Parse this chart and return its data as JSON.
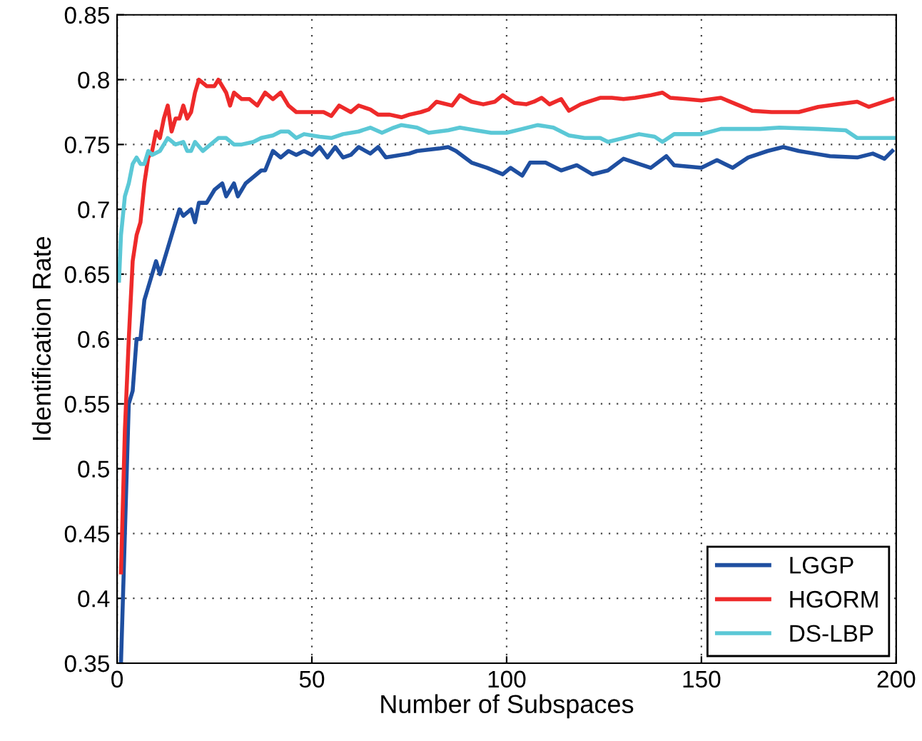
{
  "chart_data": {
    "type": "line",
    "xlabel": "Number of Subspaces",
    "ylabel": "Identification Rate",
    "xlim": [
      0,
      200
    ],
    "ylim": [
      0.35,
      0.85
    ],
    "xticks": [
      0,
      50,
      100,
      150,
      200
    ],
    "yticks": [
      0.35,
      0.4,
      0.45,
      0.5,
      0.55,
      0.6,
      0.65,
      0.7,
      0.75,
      0.8,
      0.85
    ],
    "grid": true,
    "legend": "bottom right",
    "marker": "none",
    "line_style": "solid",
    "series": [
      {
        "name": "LGGP",
        "color": "#1f4fa0",
        "x": [
          1,
          2,
          3,
          4,
          5,
          6,
          7,
          8,
          9,
          10,
          11,
          13,
          15,
          16,
          17,
          19,
          20,
          21,
          23,
          25,
          27,
          28,
          30,
          31,
          33,
          35,
          37,
          38,
          40,
          42,
          44,
          46,
          48,
          50,
          52,
          54,
          56,
          58,
          60,
          62,
          65,
          67,
          69,
          75,
          77,
          83,
          85,
          87,
          91,
          95,
          99,
          101,
          104,
          106,
          110,
          114,
          118,
          122,
          126,
          130,
          133,
          137,
          141,
          143,
          150,
          154,
          158,
          162,
          167,
          171,
          175,
          179,
          183,
          190,
          194,
          197,
          199
        ],
        "values": [
          0.35,
          0.45,
          0.55,
          0.56,
          0.6,
          0.6,
          0.63,
          0.64,
          0.65,
          0.66,
          0.65,
          0.67,
          0.69,
          0.7,
          0.695,
          0.7,
          0.69,
          0.705,
          0.705,
          0.715,
          0.72,
          0.71,
          0.72,
          0.71,
          0.72,
          0.725,
          0.73,
          0.73,
          0.745,
          0.74,
          0.745,
          0.742,
          0.745,
          0.742,
          0.748,
          0.74,
          0.748,
          0.74,
          0.742,
          0.748,
          0.743,
          0.748,
          0.74,
          0.743,
          0.745,
          0.747,
          0.748,
          0.745,
          0.736,
          0.732,
          0.727,
          0.732,
          0.726,
          0.736,
          0.736,
          0.73,
          0.734,
          0.727,
          0.73,
          0.739,
          0.736,
          0.732,
          0.741,
          0.734,
          0.732,
          0.738,
          0.732,
          0.74,
          0.745,
          0.748,
          0.745,
          0.743,
          0.741,
          0.74,
          0.743,
          0.739,
          0.745
        ]
      },
      {
        "name": "HGORM",
        "color": "#ee2a2a",
        "x": [
          1,
          2,
          3,
          4,
          5,
          6,
          7,
          8,
          9,
          10,
          11,
          12,
          13,
          14,
          15,
          16,
          17,
          18,
          19,
          20,
          21,
          23,
          25,
          26,
          28,
          29,
          30,
          32,
          34,
          36,
          38,
          40,
          42,
          44,
          46,
          48,
          50,
          53,
          55,
          57,
          60,
          62,
          65,
          67,
          70,
          73,
          75,
          78,
          80,
          82,
          86,
          88,
          91,
          94,
          97,
          99,
          102,
          105,
          107,
          109,
          111,
          114,
          116,
          119,
          121,
          124,
          127,
          130,
          133,
          137,
          140,
          142,
          146,
          150,
          155,
          159,
          163,
          168,
          175,
          180,
          185,
          190,
          193,
          197,
          199
        ],
        "values": [
          0.42,
          0.53,
          0.6,
          0.66,
          0.68,
          0.69,
          0.72,
          0.74,
          0.745,
          0.76,
          0.755,
          0.77,
          0.78,
          0.76,
          0.77,
          0.77,
          0.78,
          0.77,
          0.775,
          0.79,
          0.8,
          0.795,
          0.795,
          0.8,
          0.79,
          0.78,
          0.79,
          0.785,
          0.785,
          0.78,
          0.79,
          0.785,
          0.79,
          0.78,
          0.775,
          0.775,
          0.775,
          0.775,
          0.772,
          0.78,
          0.775,
          0.78,
          0.777,
          0.773,
          0.773,
          0.771,
          0.773,
          0.775,
          0.777,
          0.783,
          0.78,
          0.788,
          0.783,
          0.781,
          0.783,
          0.788,
          0.782,
          0.781,
          0.783,
          0.786,
          0.781,
          0.785,
          0.776,
          0.781,
          0.783,
          0.786,
          0.786,
          0.785,
          0.786,
          0.788,
          0.79,
          0.786,
          0.785,
          0.784,
          0.786,
          0.781,
          0.776,
          0.775,
          0.775,
          0.779,
          0.781,
          0.783,
          0.779,
          0.783,
          0.785
        ]
      },
      {
        "name": "DS-LBP",
        "color": "#5bc8d6",
        "x": [
          0.5,
          1,
          2,
          3,
          4,
          5,
          6,
          7,
          8,
          9,
          11,
          13,
          15,
          17,
          18,
          19,
          20,
          22,
          24,
          26,
          28,
          30,
          32,
          35,
          37,
          40,
          42,
          44,
          46,
          48,
          52,
          55,
          58,
          62,
          65,
          68,
          71,
          73,
          77,
          80,
          85,
          88,
          92,
          96,
          100,
          104,
          108,
          112,
          116,
          120,
          124,
          126,
          130,
          134,
          138,
          140,
          143,
          150,
          155,
          165,
          170,
          180,
          187,
          190,
          195,
          200
        ],
        "values": [
          0.645,
          0.68,
          0.71,
          0.72,
          0.735,
          0.74,
          0.735,
          0.735,
          0.745,
          0.742,
          0.745,
          0.755,
          0.75,
          0.752,
          0.745,
          0.745,
          0.752,
          0.745,
          0.75,
          0.755,
          0.755,
          0.75,
          0.75,
          0.752,
          0.755,
          0.757,
          0.76,
          0.76,
          0.755,
          0.758,
          0.756,
          0.755,
          0.758,
          0.76,
          0.763,
          0.759,
          0.763,
          0.765,
          0.763,
          0.759,
          0.761,
          0.763,
          0.761,
          0.759,
          0.759,
          0.762,
          0.765,
          0.763,
          0.757,
          0.755,
          0.755,
          0.752,
          0.755,
          0.758,
          0.756,
          0.752,
          0.758,
          0.758,
          0.762,
          0.762,
          0.763,
          0.762,
          0.761,
          0.755,
          0.755,
          0.755
        ]
      }
    ]
  }
}
